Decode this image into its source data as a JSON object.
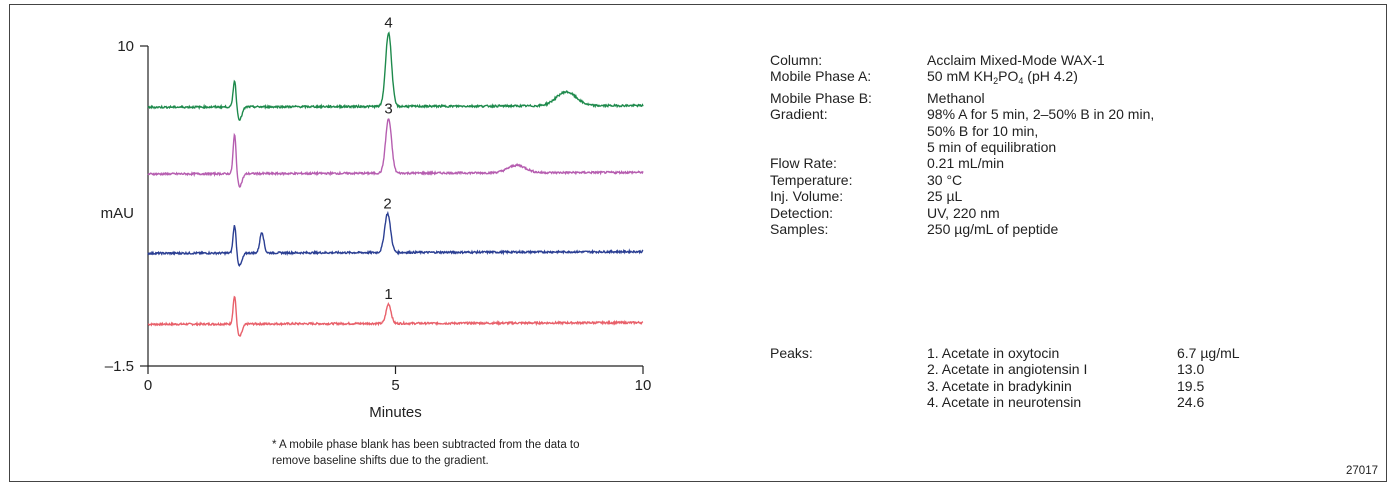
{
  "chart_data": {
    "type": "line",
    "title": "",
    "xlabel": "Minutes",
    "ylabel": "mAU",
    "xlim": [
      0,
      10
    ],
    "ylim": [
      -1.5,
      10
    ],
    "xticks": [
      0,
      5,
      10
    ],
    "yticks": [
      -1.5,
      10
    ],
    "xtick_labels": [
      "0",
      "5",
      "10"
    ],
    "ytick_labels": [
      "–1.5",
      "10"
    ],
    "grid": false,
    "series": [
      {
        "key": "trace_1",
        "color": "#e8606a",
        "baseline": 0.0,
        "peak_label": "1",
        "peaks": [
          {
            "x": 1.75,
            "h": 1.05,
            "w": 0.03
          },
          {
            "x": 1.85,
            "h": -0.45,
            "w": 0.05
          },
          {
            "x": 4.86,
            "h": 0.7,
            "w": 0.05
          }
        ]
      },
      {
        "key": "trace_2",
        "color": "#2b3f93",
        "baseline": 2.55,
        "peak_label": "2",
        "peaks": [
          {
            "x": 1.75,
            "h": 1.05,
            "w": 0.03
          },
          {
            "x": 1.85,
            "h": -0.45,
            "w": 0.05
          },
          {
            "x": 2.3,
            "h": 0.75,
            "w": 0.04
          },
          {
            "x": 4.84,
            "h": 1.4,
            "w": 0.06
          }
        ]
      },
      {
        "key": "trace_3",
        "color": "#b65eb0",
        "baseline": 5.4,
        "peak_label": "3",
        "peaks": [
          {
            "x": 1.75,
            "h": 1.45,
            "w": 0.03
          },
          {
            "x": 1.85,
            "h": -0.45,
            "w": 0.05
          },
          {
            "x": 4.86,
            "h": 1.95,
            "w": 0.06
          },
          {
            "x": 7.45,
            "h": 0.27,
            "w": 0.18
          }
        ]
      },
      {
        "key": "trace_4",
        "color": "#1e8a4c",
        "baseline": 7.8,
        "peak_label": "4",
        "peaks": [
          {
            "x": 1.75,
            "h": 1.0,
            "w": 0.03
          },
          {
            "x": 1.85,
            "h": -0.45,
            "w": 0.05
          },
          {
            "x": 4.86,
            "h": 2.65,
            "w": 0.06
          },
          {
            "x": 8.45,
            "h": 0.5,
            "w": 0.2
          }
        ]
      }
    ]
  },
  "footnote": "* A mobile phase blank has been subtracted from the data to remove baseline shifts due to the gradient.",
  "conditions": [
    {
      "label": "Column:",
      "value": "Acclaim Mixed-Mode WAX-1"
    },
    {
      "label": "Mobile Phase A:",
      "value_parts": [
        "50 mM KH",
        "2",
        "PO",
        "4",
        " (pH 4.2)"
      ]
    },
    {
      "label": "Mobile Phase B:",
      "value": "Methanol"
    },
    {
      "label": "Gradient:",
      "value": "98% A for 5 min, 2–50% B in 20 min,"
    },
    {
      "label": "",
      "value": "50% B for 10 min,"
    },
    {
      "label": "",
      "value": "5 min of equilibration"
    },
    {
      "label": "Flow Rate:",
      "value": "0.21 mL/min"
    },
    {
      "label": "Temperature:",
      "value": "30 °C"
    },
    {
      "label": "Inj. Volume:",
      "value": "25 µL"
    },
    {
      "label": "Detection:",
      "value": "UV, 220 nm"
    },
    {
      "label": "Samples:",
      "value": "250 µg/mL of  peptide"
    }
  ],
  "peaks_label": "Peaks:",
  "peaks": [
    {
      "name": "1.  Acetate in oxytocin",
      "amount": "6.7 µg/mL"
    },
    {
      "name": "2.  Acetate in angiotensin I",
      "amount": "13.0"
    },
    {
      "name": "3.  Acetate in bradykinin",
      "amount": "19.5"
    },
    {
      "name": "4.  Acetate in neurotensin",
      "amount": "24.6"
    }
  ],
  "figure_id": "27017"
}
